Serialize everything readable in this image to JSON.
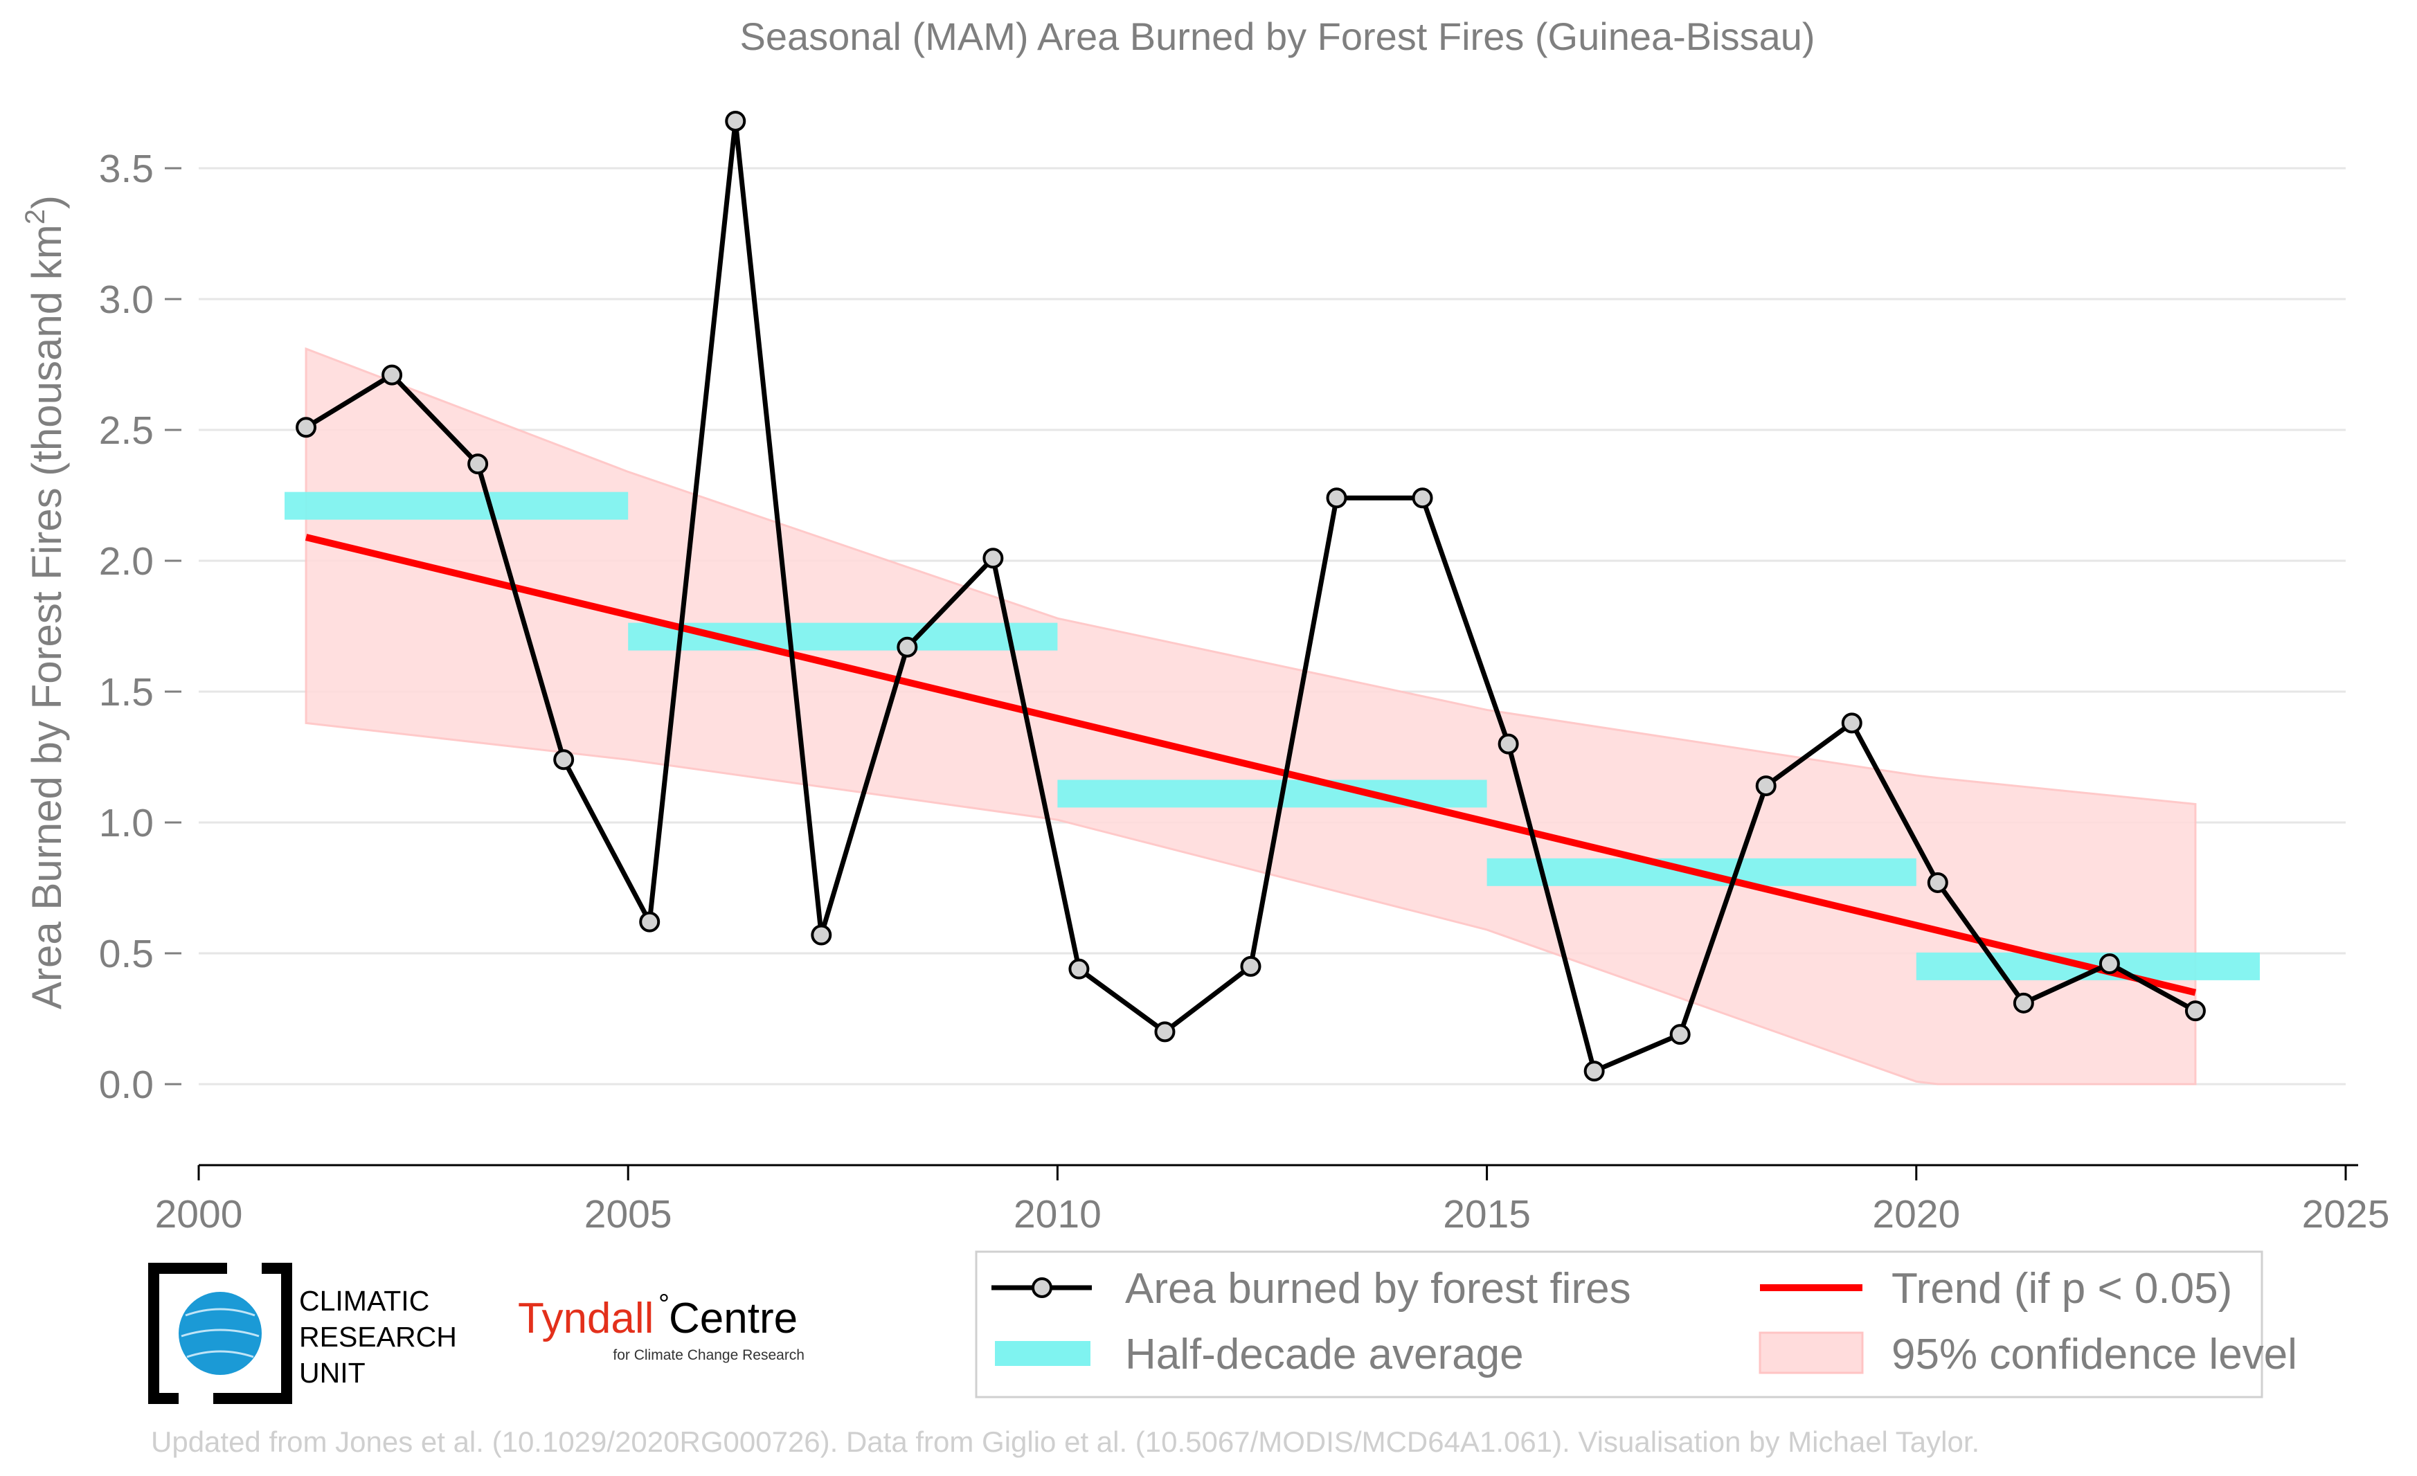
{
  "colors": {
    "series": "#000000",
    "marker_fill": "#d3d3d3",
    "trend": "#ff0000",
    "half_decade": "#7ff3f0",
    "confidence": "#ffdcdc",
    "confidence_edge": "#ffc4c4",
    "grid": "#e6e6e6",
    "text": "#7f7f7f",
    "footer_text": "#cfcfcf",
    "tyndall_red": "#e3301b",
    "cru_blue": "#1b9ad6"
  },
  "chart_data": {
    "type": "line",
    "title": "Seasonal (MAM) Area Burned by Forest Fires (Guinea-Bissau)",
    "ylabel": "Area Burned by Forest Fires (thousand km",
    "ylabel_sup": "2",
    "ylabel_end": ")",
    "xlabel": "",
    "xlim": [
      2000,
      2025
    ],
    "ylim": [
      -0.17,
      3.75
    ],
    "grid": true,
    "legend_position": "bottom-right",
    "x_ticks": [
      2000,
      2005,
      2010,
      2015,
      2020,
      2025
    ],
    "x_tick_labels": [
      "2000",
      "2005",
      "2010",
      "2015",
      "2020",
      "2025"
    ],
    "y_ticks": [
      0.0,
      0.5,
      1.0,
      1.5,
      2.0,
      2.5,
      3.0,
      3.5
    ],
    "y_tick_labels": [
      "0.0",
      "0.5",
      "1.0",
      "1.5",
      "2.0",
      "2.5",
      "3.0",
      "3.5"
    ],
    "series": [
      {
        "name": "Area burned by forest fires",
        "x": [
          2001.25,
          2002.25,
          2003.25,
          2004.25,
          2005.25,
          2006.25,
          2007.25,
          2008.25,
          2009.25,
          2010.25,
          2011.25,
          2012.25,
          2013.25,
          2014.25,
          2015.25,
          2016.25,
          2017.25,
          2018.25,
          2019.25,
          2020.25,
          2021.25,
          2022.25,
          2023.25
        ],
        "values": [
          2.51,
          2.71,
          2.37,
          1.24,
          0.62,
          3.68,
          0.57,
          1.67,
          2.01,
          0.44,
          0.2,
          0.45,
          2.24,
          2.24,
          1.3,
          0.05,
          0.19,
          1.14,
          1.38,
          0.77,
          0.31,
          0.46,
          0.28
        ]
      }
    ],
    "half_decade_average": {
      "name": "Half-decade average",
      "segments": [
        {
          "x_start": 2001,
          "x_end": 2005,
          "value": 2.21
        },
        {
          "x_start": 2005,
          "x_end": 2010,
          "value": 1.71
        },
        {
          "x_start": 2010,
          "x_end": 2015,
          "value": 1.11
        },
        {
          "x_start": 2015,
          "x_end": 2020,
          "value": 0.81
        },
        {
          "x_start": 2020,
          "x_end": 2024,
          "value": 0.45
        }
      ]
    },
    "trend": {
      "name": "Trend (if p < 0.05)",
      "x": [
        2001.25,
        2023.25
      ],
      "values": [
        2.09,
        0.35
      ]
    },
    "confidence": {
      "name": "95% confidence level",
      "x": [
        2001.25,
        2005,
        2010,
        2015,
        2020,
        2020.25,
        2023.25
      ],
      "upper": [
        2.81,
        2.34,
        1.78,
        1.43,
        1.18,
        1.17,
        1.07
      ],
      "lower": [
        1.38,
        1.24,
        1.01,
        0.59,
        0.01,
        0.0,
        0.0
      ]
    }
  },
  "legend": {
    "items": [
      {
        "label": "Area burned by forest fires"
      },
      {
        "label": "Trend (if p < 0.05)"
      },
      {
        "label": "Half-decade average"
      },
      {
        "label": "95% confidence level"
      }
    ]
  },
  "logos": {
    "cru": {
      "line1": "CLIMATIC",
      "line2": "RESEARCH",
      "line3": "UNIT"
    },
    "tyndall": {
      "name_a": "Tyndall",
      "degree": "°",
      "name_b": "Centre",
      "tagline": "for Climate Change Research"
    }
  },
  "footer": {
    "credit": "Updated from Jones et al. (10.1029/2020RG000726). Data from Giglio et al. (10.5067/MODIS/MCD64A1.061). Visualisation by Michael Taylor."
  }
}
